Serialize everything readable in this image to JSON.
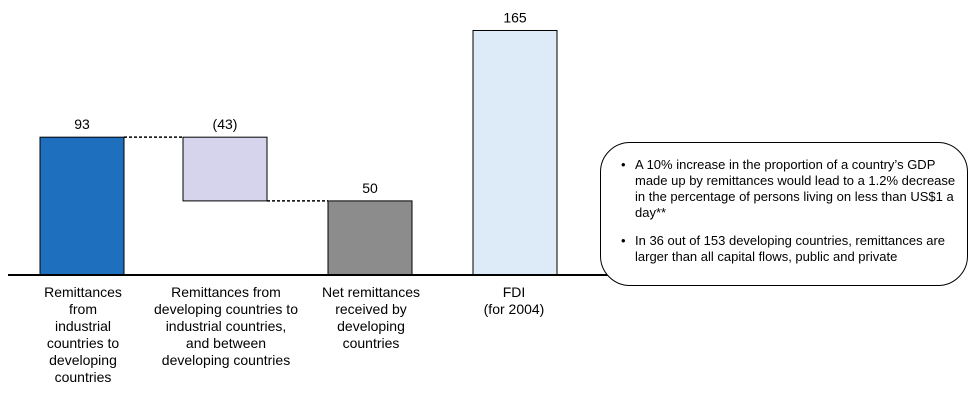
{
  "chart_data": {
    "type": "waterfall",
    "categories": [
      "Remittances\nfrom\nindustrial\ncountries to\ndeveloping\ncountries",
      "Remittances from\ndeveloping countries to\nindustrial countries,\nand between\ndeveloping countries",
      "Net remittances\nreceived by\ndeveloping\ncountries",
      "FDI\n(for 2004)"
    ],
    "values": [
      93,
      -43,
      50,
      165
    ],
    "data_labels": [
      "93",
      "(43)",
      "50",
      "165"
    ],
    "bars": [
      {
        "base": 0,
        "top": 93,
        "color": "#1f6fbf"
      },
      {
        "base": 50,
        "top": 93,
        "color": "#d6d3ec"
      },
      {
        "base": 0,
        "top": 50,
        "color": "#8c8c8c"
      },
      {
        "base": 0,
        "top": 165,
        "color": "#ddeaf7"
      }
    ],
    "connectors": [
      {
        "from": 0,
        "to": 1,
        "level": 93
      },
      {
        "from": 1,
        "to": 2,
        "level": 50
      }
    ],
    "ylim": [
      0,
      180
    ],
    "title": "",
    "xlabel": "",
    "ylabel": "",
    "grid": false
  },
  "callout": {
    "bullet_symbol": "•",
    "bullets": [
      "A 10% increase in the proportion of a country’s GDP made up by remittances would lead to a 1.2% decrease in the percentage of persons living on less than US$1 a day**",
      "In 36 out of 153 developing countries, remittances are larger than all capital flows, public and private"
    ]
  }
}
